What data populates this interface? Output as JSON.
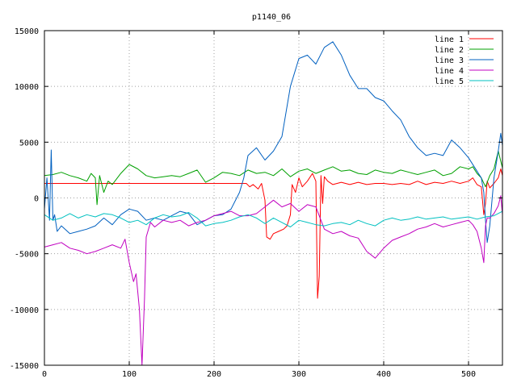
{
  "chart_data": {
    "type": "line",
    "title": "p1140_06",
    "xlabel": "",
    "ylabel": "",
    "xlim": [
      0,
      540
    ],
    "ylim": [
      -15000,
      15000
    ],
    "xticks": [
      0,
      100,
      200,
      300,
      400,
      500
    ],
    "yticks": [
      -15000,
      -10000,
      -5000,
      0,
      5000,
      10000,
      15000
    ],
    "grid": true,
    "legend_position": "top-right",
    "series": [
      {
        "name": "line 1",
        "color": "#ff0000",
        "x": [
          0,
          50,
          100,
          150,
          200,
          238,
          242,
          246,
          252,
          256,
          260,
          262,
          266,
          270,
          276,
          282,
          286,
          290,
          292,
          296,
          300,
          304,
          310,
          316,
          320,
          322,
          324,
          326,
          328,
          330,
          334,
          340,
          350,
          360,
          370,
          380,
          390,
          400,
          410,
          420,
          430,
          440,
          450,
          460,
          470,
          480,
          490,
          500,
          505,
          510,
          515,
          518,
          520,
          522,
          525,
          530,
          535,
          538,
          540
        ],
        "y": [
          1300,
          1300,
          1300,
          1300,
          1300,
          1300,
          1000,
          1200,
          800,
          1300,
          -200,
          -3500,
          -3700,
          -3200,
          -3000,
          -2800,
          -2500,
          -1500,
          1200,
          500,
          1800,
          1000,
          1500,
          2200,
          1500,
          -9000,
          -7000,
          2000,
          -500,
          1900,
          1500,
          1200,
          1400,
          1200,
          1400,
          1200,
          1300,
          1300,
          1200,
          1300,
          1200,
          1500,
          1200,
          1400,
          1300,
          1500,
          1300,
          1500,
          1800,
          1200,
          1000,
          -1500,
          -500,
          1500,
          900,
          1300,
          1800,
          2600,
          2000
        ]
      },
      {
        "name": "line 2",
        "color": "#00a000",
        "x": [
          0,
          10,
          20,
          30,
          40,
          50,
          55,
          60,
          62,
          65,
          70,
          75,
          80,
          90,
          100,
          110,
          120,
          130,
          140,
          150,
          160,
          170,
          180,
          190,
          200,
          210,
          220,
          230,
          240,
          250,
          260,
          270,
          280,
          290,
          300,
          310,
          320,
          330,
          340,
          350,
          360,
          370,
          380,
          390,
          400,
          410,
          420,
          430,
          440,
          450,
          460,
          470,
          480,
          490,
          500,
          505,
          510,
          515,
          520,
          525,
          530,
          535,
          540
        ],
        "y": [
          2000,
          2100,
          2300,
          2000,
          1800,
          1500,
          2200,
          1800,
          -600,
          2000,
          500,
          1500,
          1200,
          2200,
          3000,
          2600,
          2000,
          1800,
          1900,
          2000,
          1900,
          2200,
          2500,
          1400,
          1800,
          2300,
          2200,
          2000,
          2500,
          2200,
          2300,
          2000,
          2600,
          1900,
          2400,
          2600,
          2200,
          2500,
          2800,
          2400,
          2500,
          2200,
          2100,
          2500,
          2300,
          2200,
          2500,
          2300,
          2100,
          2300,
          2500,
          2000,
          2200,
          2800,
          2600,
          2800,
          2200,
          1800,
          1000,
          2000,
          2600,
          4200,
          2700
        ]
      },
      {
        "name": "line 3",
        "color": "#0060c0",
        "x": [
          0,
          3,
          6,
          8,
          10,
          12,
          15,
          20,
          30,
          40,
          50,
          60,
          70,
          80,
          90,
          100,
          110,
          120,
          130,
          140,
          150,
          160,
          170,
          180,
          190,
          200,
          210,
          220,
          230,
          235,
          240,
          250,
          260,
          270,
          280,
          290,
          300,
          310,
          320,
          330,
          340,
          350,
          360,
          370,
          380,
          390,
          400,
          410,
          420,
          430,
          440,
          450,
          460,
          470,
          480,
          490,
          500,
          510,
          515,
          518,
          520,
          522,
          525,
          530,
          535,
          538,
          540
        ],
        "y": [
          -1000,
          1800,
          -2000,
          4300,
          -2000,
          -1500,
          -3000,
          -2500,
          -3200,
          -3000,
          -2800,
          -2500,
          -1800,
          -2400,
          -1500,
          -1000,
          -1200,
          -2000,
          -1800,
          -2000,
          -1600,
          -1200,
          -1400,
          -2400,
          -2000,
          -1600,
          -1500,
          -1000,
          500,
          1800,
          3800,
          4500,
          3400,
          4200,
          5500,
          10000,
          12500,
          12800,
          12000,
          13500,
          14000,
          12800,
          11000,
          9800,
          9800,
          9000,
          8700,
          7800,
          7000,
          5500,
          4500,
          3800,
          4000,
          3800,
          5200,
          4500,
          3600,
          2400,
          1800,
          500,
          -2000,
          -4000,
          -2500,
          1800,
          4200,
          5800,
          4700
        ]
      },
      {
        "name": "line 4",
        "color": "#c000c0",
        "x": [
          0,
          10,
          20,
          30,
          40,
          50,
          60,
          70,
          80,
          90,
          95,
          100,
          105,
          108,
          112,
          115,
          118,
          120,
          125,
          130,
          140,
          150,
          160,
          170,
          180,
          190,
          200,
          210,
          220,
          230,
          240,
          250,
          260,
          270,
          280,
          290,
          300,
          310,
          320,
          330,
          340,
          350,
          360,
          370,
          380,
          390,
          400,
          410,
          420,
          430,
          440,
          450,
          460,
          470,
          480,
          490,
          500,
          505,
          510,
          515,
          518,
          520,
          522,
          525,
          530,
          535,
          538,
          540
        ],
        "y": [
          -4400,
          -4200,
          -4000,
          -4500,
          -4700,
          -5000,
          -4800,
          -4500,
          -4200,
          -4500,
          -3700,
          -5800,
          -7500,
          -6800,
          -10000,
          -15000,
          -9000,
          -3500,
          -2200,
          -2600,
          -2000,
          -2200,
          -2000,
          -2500,
          -2200,
          -2000,
          -1600,
          -1400,
          -1200,
          -1600,
          -1600,
          -1400,
          -800,
          -200,
          -800,
          -500,
          -1200,
          -600,
          -800,
          -2800,
          -3200,
          -3000,
          -3400,
          -3600,
          -4800,
          -5400,
          -4500,
          -3800,
          -3500,
          -3200,
          -2800,
          -2600,
          -2300,
          -2600,
          -2400,
          -2200,
          -2000,
          -2400,
          -3000,
          -4500,
          -5800,
          -2500,
          -1800,
          -1800,
          -1400,
          -700,
          200,
          -1500
        ]
      },
      {
        "name": "line 5",
        "color": "#00c0c0",
        "x": [
          0,
          10,
          20,
          30,
          40,
          50,
          60,
          70,
          80,
          90,
          100,
          110,
          120,
          130,
          140,
          150,
          160,
          170,
          180,
          190,
          200,
          210,
          220,
          230,
          240,
          250,
          260,
          270,
          280,
          290,
          300,
          310,
          320,
          330,
          340,
          350,
          360,
          370,
          380,
          390,
          400,
          410,
          420,
          430,
          440,
          450,
          460,
          470,
          480,
          490,
          500,
          510,
          520,
          530,
          540
        ],
        "y": [
          -1500,
          -2000,
          -1800,
          -1400,
          -1800,
          -1500,
          -1700,
          -1400,
          -1500,
          -1800,
          -2200,
          -2000,
          -2400,
          -1800,
          -1500,
          -1700,
          -1600,
          -1300,
          -1800,
          -2500,
          -2300,
          -2200,
          -2000,
          -1700,
          -1500,
          -1800,
          -2300,
          -1800,
          -2200,
          -2600,
          -2000,
          -2200,
          -2400,
          -2500,
          -2300,
          -2200,
          -2400,
          -2000,
          -2300,
          -2500,
          -2000,
          -1800,
          -2000,
          -1900,
          -1700,
          -1900,
          -1800,
          -1700,
          -1900,
          -1800,
          -1700,
          -1900,
          -1700,
          -1600,
          -1200
        ]
      }
    ]
  }
}
